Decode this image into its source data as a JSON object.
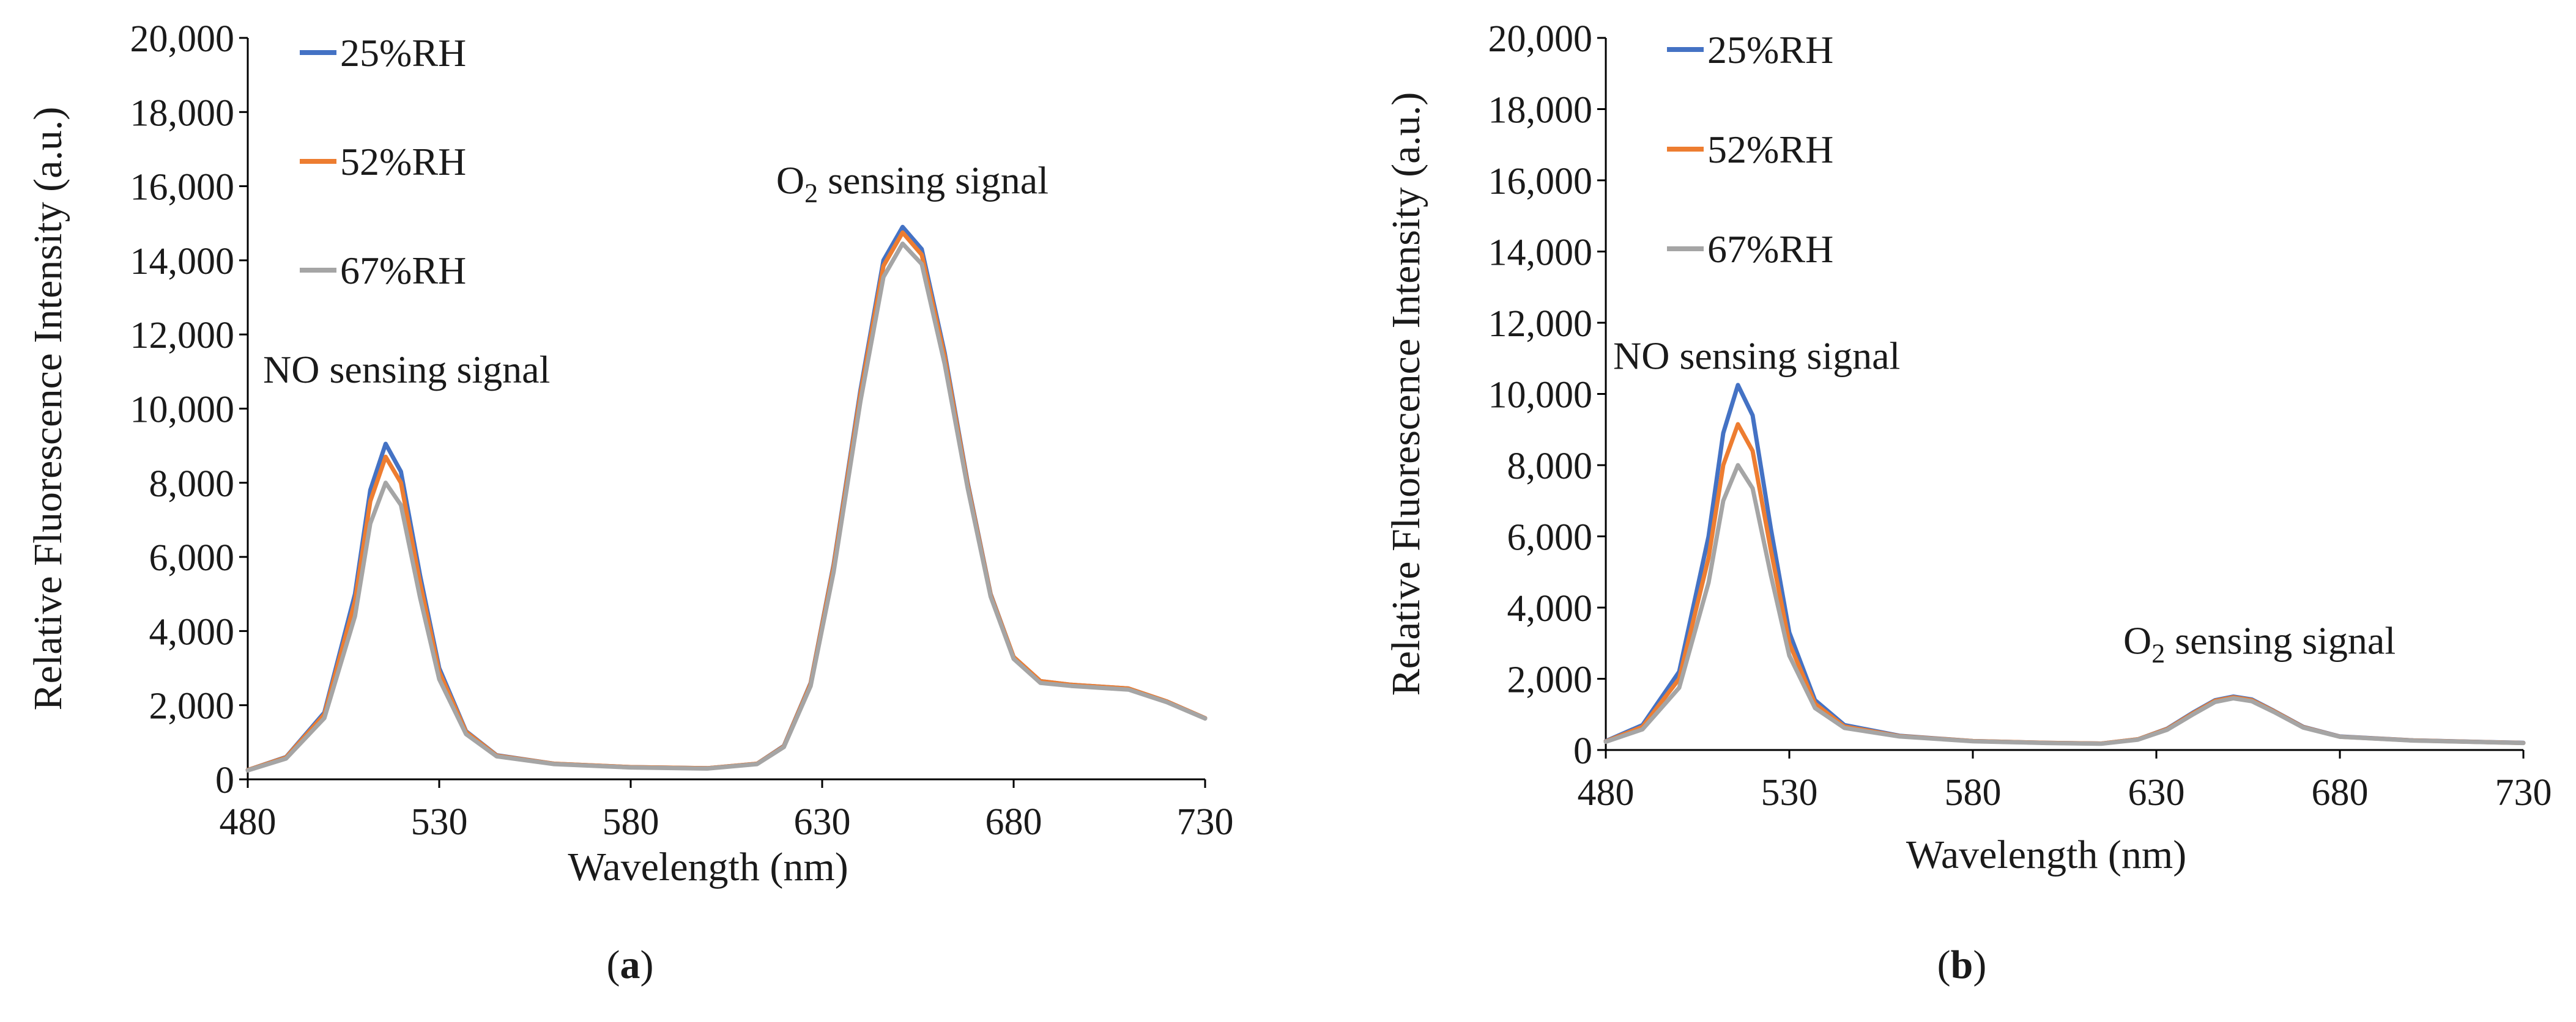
{
  "colors": {
    "series_25": "#4472C4",
    "series_52": "#ED7D31",
    "series_67": "#A5A5A5",
    "axis": "#000000",
    "text": "#1a1a1a"
  },
  "chart_data": [
    {
      "panel_label": "(a)",
      "type": "line",
      "xlabel": "Wavelength (nm)",
      "ylabel": "Relative Fluorescence Intensity (a.u.)",
      "xlim": [
        480,
        730
      ],
      "ylim": [
        0,
        20000
      ],
      "x_ticks": [
        480,
        530,
        580,
        630,
        680,
        730
      ],
      "y_ticks": [
        0,
        2000,
        4000,
        6000,
        8000,
        10000,
        12000,
        14000,
        16000,
        18000,
        20000
      ],
      "y_tick_labels": [
        "0",
        "2,000",
        "4,000",
        "6,000",
        "8,000",
        "10,000",
        "12,000",
        "14,000",
        "16,000",
        "18,000",
        "20,000"
      ],
      "x_tick_labels": [
        "480",
        "530",
        "580",
        "630",
        "680",
        "730"
      ],
      "grid": false,
      "legend_position": "top-left",
      "annotations": [
        {
          "text": "NO sensing signal",
          "at": [
            484,
            10700
          ]
        },
        {
          "text_main": "O",
          "text_sub": "2",
          "text_rest": " sensing signal",
          "at": [
            618,
            15800
          ]
        }
      ],
      "series": [
        {
          "name": "25%RH",
          "color_key": "series_25",
          "points": [
            [
              480,
              250
            ],
            [
              490,
              600
            ],
            [
              500,
              1800
            ],
            [
              508,
              5000
            ],
            [
              512,
              7800
            ],
            [
              516,
              9050
            ],
            [
              520,
              8300
            ],
            [
              525,
              5500
            ],
            [
              530,
              3000
            ],
            [
              537,
              1300
            ],
            [
              545,
              650
            ],
            [
              560,
              420
            ],
            [
              580,
              330
            ],
            [
              600,
              300
            ],
            [
              613,
              420
            ],
            [
              620,
              900
            ],
            [
              627,
              2600
            ],
            [
              633,
              5800
            ],
            [
              640,
              10500
            ],
            [
              646,
              14000
            ],
            [
              651,
              14900
            ],
            [
              656,
              14300
            ],
            [
              662,
              11500
            ],
            [
              668,
              8000
            ],
            [
              674,
              5000
            ],
            [
              680,
              3300
            ],
            [
              687,
              2650
            ],
            [
              695,
              2550
            ],
            [
              710,
              2450
            ],
            [
              720,
              2100
            ],
            [
              730,
              1650
            ]
          ]
        },
        {
          "name": "52%RH",
          "color_key": "series_52",
          "points": [
            [
              480,
              250
            ],
            [
              490,
              590
            ],
            [
              500,
              1750
            ],
            [
              508,
              4800
            ],
            [
              512,
              7500
            ],
            [
              516,
              8700
            ],
            [
              520,
              8000
            ],
            [
              525,
              5300
            ],
            [
              530,
              2900
            ],
            [
              537,
              1280
            ],
            [
              545,
              640
            ],
            [
              560,
              420
            ],
            [
              580,
              330
            ],
            [
              600,
              300
            ],
            [
              613,
              420
            ],
            [
              620,
              890
            ],
            [
              627,
              2580
            ],
            [
              633,
              5750
            ],
            [
              640,
              10400
            ],
            [
              646,
              13850
            ],
            [
              651,
              14750
            ],
            [
              656,
              14150
            ],
            [
              662,
              11400
            ],
            [
              668,
              7950
            ],
            [
              674,
              4980
            ],
            [
              680,
              3300
            ],
            [
              687,
              2650
            ],
            [
              695,
              2550
            ],
            [
              710,
              2450
            ],
            [
              720,
              2100
            ],
            [
              730,
              1650
            ]
          ]
        },
        {
          "name": "67%RH",
          "color_key": "series_67",
          "points": [
            [
              480,
              240
            ],
            [
              490,
              560
            ],
            [
              500,
              1650
            ],
            [
              508,
              4400
            ],
            [
              512,
              6900
            ],
            [
              516,
              8000
            ],
            [
              520,
              7400
            ],
            [
              525,
              4900
            ],
            [
              530,
              2700
            ],
            [
              537,
              1220
            ],
            [
              545,
              620
            ],
            [
              560,
              410
            ],
            [
              580,
              320
            ],
            [
              600,
              290
            ],
            [
              613,
              410
            ],
            [
              620,
              870
            ],
            [
              627,
              2520
            ],
            [
              633,
              5600
            ],
            [
              640,
              10200
            ],
            [
              646,
              13550
            ],
            [
              651,
              14450
            ],
            [
              656,
              13900
            ],
            [
              662,
              11200
            ],
            [
              668,
              7850
            ],
            [
              674,
              4930
            ],
            [
              680,
              3250
            ],
            [
              687,
              2600
            ],
            [
              695,
              2520
            ],
            [
              710,
              2420
            ],
            [
              720,
              2080
            ],
            [
              730,
              1640
            ]
          ]
        }
      ]
    },
    {
      "panel_label": "(b)",
      "type": "line",
      "xlabel": "Wavelength (nm)",
      "ylabel": "Relative Fluorescence Intensity (a.u.)",
      "xlim": [
        480,
        730
      ],
      "ylim": [
        0,
        20000
      ],
      "x_ticks": [
        480,
        530,
        580,
        630,
        680,
        730
      ],
      "y_ticks": [
        0,
        2000,
        4000,
        6000,
        8000,
        10000,
        12000,
        14000,
        16000,
        18000,
        20000
      ],
      "y_tick_labels": [
        "0",
        "2,000",
        "4,000",
        "6,000",
        "8,000",
        "10,000",
        "12,000",
        "14,000",
        "16,000",
        "18,000",
        "20,000"
      ],
      "x_tick_labels": [
        "480",
        "530",
        "580",
        "630",
        "680",
        "730"
      ],
      "grid": false,
      "legend_position": "top-left",
      "annotations": [
        {
          "text": "NO sensing signal",
          "at": [
            482,
            10700
          ]
        },
        {
          "text_main": "O",
          "text_sub": "2",
          "text_rest": " sensing signal",
          "at": [
            621,
            2700
          ]
        }
      ],
      "series": [
        {
          "name": "25%RH",
          "color_key": "series_25",
          "points": [
            [
              480,
              250
            ],
            [
              490,
              700
            ],
            [
              500,
              2200
            ],
            [
              508,
              6000
            ],
            [
              512,
              8900
            ],
            [
              516,
              10250
            ],
            [
              520,
              9400
            ],
            [
              525,
              6200
            ],
            [
              530,
              3300
            ],
            [
              537,
              1400
            ],
            [
              545,
              700
            ],
            [
              560,
              400
            ],
            [
              580,
              250
            ],
            [
              600,
              200
            ],
            [
              615,
              180
            ],
            [
              625,
              300
            ],
            [
              633,
              600
            ],
            [
              640,
              1050
            ],
            [
              646,
              1400
            ],
            [
              651,
              1500
            ],
            [
              656,
              1420
            ],
            [
              662,
              1100
            ],
            [
              670,
              650
            ],
            [
              680,
              380
            ],
            [
              700,
              270
            ],
            [
              730,
              200
            ]
          ]
        },
        {
          "name": "52%RH",
          "color_key": "series_52",
          "points": [
            [
              480,
              240
            ],
            [
              490,
              650
            ],
            [
              500,
              2000
            ],
            [
              508,
              5400
            ],
            [
              512,
              8000
            ],
            [
              516,
              9150
            ],
            [
              520,
              8400
            ],
            [
              525,
              5600
            ],
            [
              530,
              3000
            ],
            [
              537,
              1300
            ],
            [
              545,
              660
            ],
            [
              560,
              390
            ],
            [
              580,
              250
            ],
            [
              600,
              200
            ],
            [
              615,
              180
            ],
            [
              625,
              300
            ],
            [
              633,
              590
            ],
            [
              640,
              1030
            ],
            [
              646,
              1380
            ],
            [
              651,
              1480
            ],
            [
              656,
              1400
            ],
            [
              662,
              1090
            ],
            [
              670,
              640
            ],
            [
              680,
              375
            ],
            [
              700,
              268
            ],
            [
              730,
              198
            ]
          ]
        },
        {
          "name": "67%RH",
          "color_key": "series_67",
          "points": [
            [
              480,
              230
            ],
            [
              490,
              580
            ],
            [
              500,
              1750
            ],
            [
              508,
              4700
            ],
            [
              512,
              7000
            ],
            [
              516,
              8000
            ],
            [
              520,
              7350
            ],
            [
              525,
              4900
            ],
            [
              530,
              2650
            ],
            [
              537,
              1180
            ],
            [
              545,
              620
            ],
            [
              560,
              380
            ],
            [
              580,
              245
            ],
            [
              600,
              195
            ],
            [
              615,
              175
            ],
            [
              625,
              290
            ],
            [
              633,
              570
            ],
            [
              640,
              1000
            ],
            [
              646,
              1350
            ],
            [
              651,
              1450
            ],
            [
              656,
              1370
            ],
            [
              662,
              1070
            ],
            [
              670,
              630
            ],
            [
              680,
              370
            ],
            [
              700,
              265
            ],
            [
              730,
              195
            ]
          ]
        }
      ]
    }
  ]
}
